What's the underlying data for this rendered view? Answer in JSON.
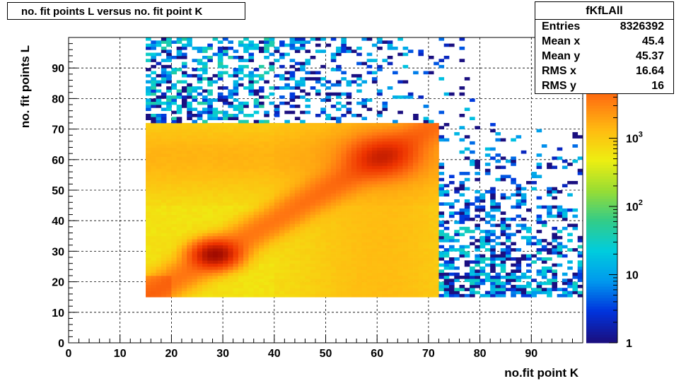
{
  "title": "no. fit points L versus no. fit point K",
  "stats": {
    "name": "fKfLAll",
    "rows": [
      {
        "label": "Entries",
        "value": "8326392"
      },
      {
        "label": "Mean x",
        "value": "45.4"
      },
      {
        "label": "Mean y",
        "value": "45.37"
      },
      {
        "label": "RMS x",
        "value": "16.64"
      },
      {
        "label": "RMS y",
        "value": "16"
      }
    ]
  },
  "chart_data": {
    "type": "heatmap",
    "title": "no. fit points L versus no. fit point K",
    "xlabel": "no.fit point K",
    "ylabel": "no. fit points  L",
    "xlim": [
      0,
      100
    ],
    "ylim": [
      0,
      100
    ],
    "x_ticks": [
      0,
      10,
      20,
      30,
      40,
      50,
      60,
      70,
      80,
      90
    ],
    "y_ticks": [
      0,
      10,
      20,
      30,
      40,
      50,
      60,
      70,
      80,
      90
    ],
    "z_scale": "log",
    "z_ticks": [
      "1",
      "10",
      "10^2",
      "10^3"
    ],
    "grid": true,
    "palette": [
      "#1a0f80",
      "#0033dd",
      "#0099ee",
      "#00ccdd",
      "#33cc88",
      "#99dd33",
      "#eeee11",
      "#ffbb11",
      "#ff7711",
      "#ee3300",
      "#8b0000"
    ],
    "dense_region": {
      "x": [
        15,
        72
      ],
      "y": [
        15,
        72
      ],
      "counts_range": [
        300,
        20000
      ]
    },
    "peaks": [
      {
        "x": 28.5,
        "y": 29,
        "counts": 20000
      },
      {
        "x": 61,
        "y": 61,
        "counts": 15000
      }
    ],
    "features": [
      {
        "name": "diagonal ridge",
        "from": [
          15,
          15
        ],
        "to": [
          72,
          72
        ]
      },
      {
        "name": "enhanced band y",
        "y": [
          45,
          72
        ]
      },
      {
        "name": "enhanced band x",
        "x": [
          40,
          72
        ]
      }
    ],
    "sparse_regions": [
      {
        "x": [
          15,
          100
        ],
        "y": [
          72,
          100
        ],
        "counts_range": [
          1,
          50
        ]
      },
      {
        "x": [
          72,
          100
        ],
        "y": [
          15,
          72
        ],
        "counts_range": [
          1,
          50
        ]
      }
    ]
  }
}
